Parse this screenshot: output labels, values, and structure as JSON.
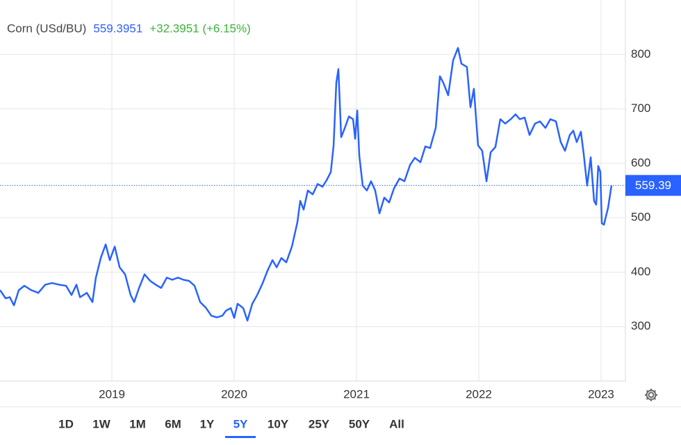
{
  "chart_data": {
    "type": "line",
    "title": "Corn (USd/BU)",
    "last": 559.3951,
    "last_label": "559.39",
    "change": "+32.3951 (+6.15%)",
    "color": "#2962ff",
    "x": [
      2018.085,
      2018.131,
      2018.165,
      2018.199,
      2018.239,
      2018.284,
      2018.341,
      2018.398,
      2018.455,
      2018.511,
      2018.568,
      2018.625,
      2018.67,
      2018.71,
      2018.739,
      2018.795,
      2018.841,
      2018.869,
      2018.909,
      2018.949,
      2018.983,
      2019.023,
      2019.063,
      2019.108,
      2019.153,
      2019.182,
      2019.222,
      2019.267,
      2019.313,
      2019.358,
      2019.403,
      2019.449,
      2019.494,
      2019.54,
      2019.585,
      2019.631,
      2019.676,
      2019.722,
      2019.767,
      2019.813,
      2019.858,
      2019.903,
      2019.932,
      2019.972,
      2020.0,
      2020.028,
      2020.074,
      2020.108,
      2020.148,
      2020.188,
      2020.233,
      2020.273,
      2020.313,
      2020.347,
      2020.386,
      2020.426,
      2020.472,
      2020.517,
      2020.54,
      2020.568,
      2020.602,
      2020.642,
      2020.682,
      2020.722,
      2020.756,
      2020.79,
      2020.813,
      2020.835,
      2020.852,
      2020.875,
      2020.903,
      2020.938,
      2020.972,
      2020.989,
      2021.006,
      2021.023,
      2021.051,
      2021.085,
      2021.119,
      2021.153,
      2021.188,
      2021.227,
      2021.267,
      2021.307,
      2021.352,
      2021.392,
      2021.438,
      2021.477,
      2021.523,
      2021.563,
      2021.602,
      2021.648,
      2021.682,
      2021.71,
      2021.75,
      2021.79,
      2021.83,
      2021.858,
      2021.903,
      2021.932,
      2021.96,
      2021.994,
      2022.028,
      2022.063,
      2022.097,
      2022.136,
      2022.176,
      2022.216,
      2022.261,
      2022.301,
      2022.335,
      2022.375,
      2022.415,
      2022.46,
      2022.5,
      2022.545,
      2022.585,
      2022.631,
      2022.67,
      2022.705,
      2022.744,
      2022.773,
      2022.801,
      2022.835,
      2022.858,
      2022.886,
      2022.915,
      2022.943,
      2022.96,
      2022.977,
      2022.994,
      2023.006,
      2023.023,
      2023.057,
      2023.085
    ],
    "values": [
      367,
      352,
      354,
      339,
      367,
      375,
      367,
      362,
      377,
      380,
      377,
      375,
      358,
      377,
      354,
      362,
      345,
      390,
      426,
      451,
      422,
      447,
      409,
      396,
      358,
      345,
      371,
      396,
      384,
      377,
      371,
      390,
      386,
      390,
      386,
      384,
      375,
      345,
      335,
      320,
      317,
      320,
      329,
      334,
      316,
      342,
      334,
      311,
      342,
      358,
      380,
      403,
      422,
      409,
      426,
      418,
      447,
      492,
      531,
      515,
      550,
      543,
      562,
      557,
      569,
      584,
      633,
      748,
      773,
      648,
      664,
      686,
      681,
      645,
      697,
      614,
      559,
      550,
      567,
      550,
      508,
      537,
      528,
      554,
      572,
      567,
      597,
      610,
      602,
      631,
      628,
      665,
      760,
      748,
      725,
      789,
      812,
      783,
      777,
      703,
      737,
      633,
      623,
      567,
      620,
      630,
      681,
      673,
      681,
      690,
      681,
      684,
      652,
      673,
      677,
      665,
      681,
      677,
      639,
      623,
      652,
      660,
      639,
      658,
      617,
      559,
      611,
      531,
      524,
      595,
      584,
      490,
      487,
      518,
      559
    ],
    "xlim": [
      2018.085,
      2023.199
    ],
    "xticks": [
      2019,
      2020,
      2021,
      2022,
      2023
    ],
    "ylim": [
      200,
      900
    ],
    "yticks": [
      300,
      400,
      500,
      600,
      700,
      800
    ],
    "grid": true
  },
  "range_buttons": [
    "1D",
    "1W",
    "1M",
    "6M",
    "1Y",
    "5Y",
    "10Y",
    "25Y",
    "50Y",
    "All"
  ],
  "selected_range": "5Y"
}
